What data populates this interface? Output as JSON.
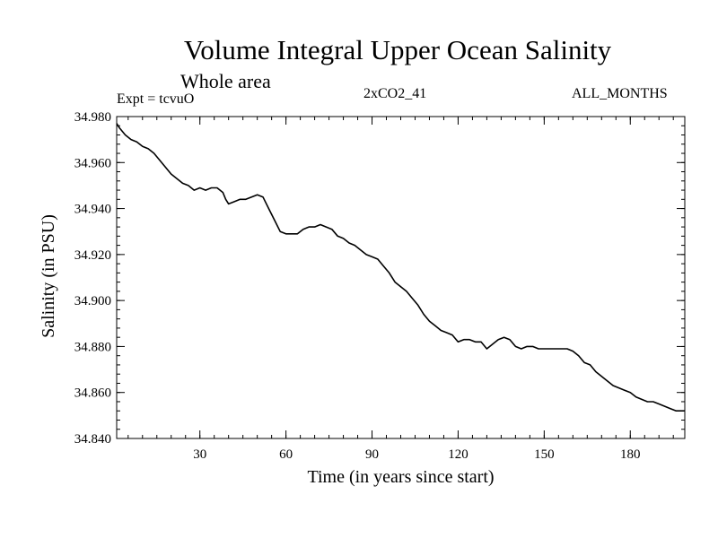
{
  "chart_data": {
    "type": "line",
    "title": "Volume Integral Upper Ocean Salinity",
    "subtitle": "Whole area",
    "annotations": {
      "left": "Expt = tcvuO",
      "center": "2xCO2_41",
      "right": "ALL_MONTHS"
    },
    "xlabel": "Time (in years since start)",
    "ylabel": "Salinity (in PSU)",
    "xlim": [
      1,
      199
    ],
    "ylim": [
      34.84,
      34.98
    ],
    "xticks": [
      30,
      60,
      90,
      120,
      150,
      180
    ],
    "xtick_labels": [
      "30",
      "60",
      "90",
      "120",
      "150",
      "180"
    ],
    "yticks": [
      34.84,
      34.86,
      34.88,
      34.9,
      34.92,
      34.94,
      34.96,
      34.98
    ],
    "ytick_labels": [
      "34.840",
      "34.860",
      "34.880",
      "34.900",
      "34.920",
      "34.940",
      "34.960",
      "34.980"
    ],
    "grid": false,
    "legend": "none",
    "line_color": "#000000",
    "series": [
      {
        "x": [
          1,
          2,
          4,
          6,
          8,
          10,
          12,
          14,
          16,
          18,
          20,
          22,
          24,
          26,
          28,
          30,
          32,
          34,
          36,
          38,
          39,
          40,
          42,
          44,
          46,
          48,
          50,
          52,
          54,
          56,
          58,
          60,
          62,
          64,
          66,
          68,
          70,
          72,
          74,
          76,
          78,
          80,
          82,
          84,
          86,
          88,
          90,
          92,
          94,
          96,
          98,
          100,
          102,
          104,
          106,
          108,
          110,
          112,
          114,
          116,
          118,
          120,
          122,
          124,
          126,
          128,
          130,
          132,
          134,
          136,
          138,
          140,
          142,
          144,
          146,
          148,
          150,
          152,
          154,
          156,
          158,
          160,
          162,
          164,
          166,
          168,
          170,
          172,
          174,
          176,
          178,
          180,
          182,
          184,
          186,
          188,
          190,
          192,
          194,
          196,
          198,
          199
        ],
        "y": [
          34.977,
          34.975,
          34.972,
          34.97,
          34.969,
          34.967,
          34.966,
          34.964,
          34.961,
          34.958,
          34.955,
          34.953,
          34.951,
          34.95,
          34.948,
          34.949,
          34.948,
          34.949,
          34.949,
          34.947,
          34.944,
          34.942,
          34.943,
          34.944,
          34.944,
          34.945,
          34.946,
          34.945,
          34.94,
          34.935,
          34.93,
          34.929,
          34.929,
          34.929,
          34.931,
          34.932,
          34.932,
          34.933,
          34.932,
          34.931,
          34.928,
          34.927,
          34.925,
          34.924,
          34.922,
          34.92,
          34.919,
          34.918,
          34.915,
          34.912,
          34.908,
          34.906,
          34.904,
          34.901,
          34.898,
          34.894,
          34.891,
          34.889,
          34.887,
          34.886,
          34.885,
          34.882,
          34.883,
          34.883,
          34.882,
          34.882,
          34.879,
          34.881,
          34.883,
          34.884,
          34.883,
          34.88,
          34.879,
          34.88,
          34.88,
          34.879,
          34.879,
          34.879,
          34.879,
          34.879,
          34.879,
          34.878,
          34.876,
          34.873,
          34.872,
          34.869,
          34.867,
          34.865,
          34.863,
          34.862,
          34.861,
          34.86,
          34.858,
          34.857,
          34.856,
          34.856,
          34.855,
          34.854,
          34.853,
          34.852,
          34.852,
          34.852
        ]
      }
    ]
  }
}
